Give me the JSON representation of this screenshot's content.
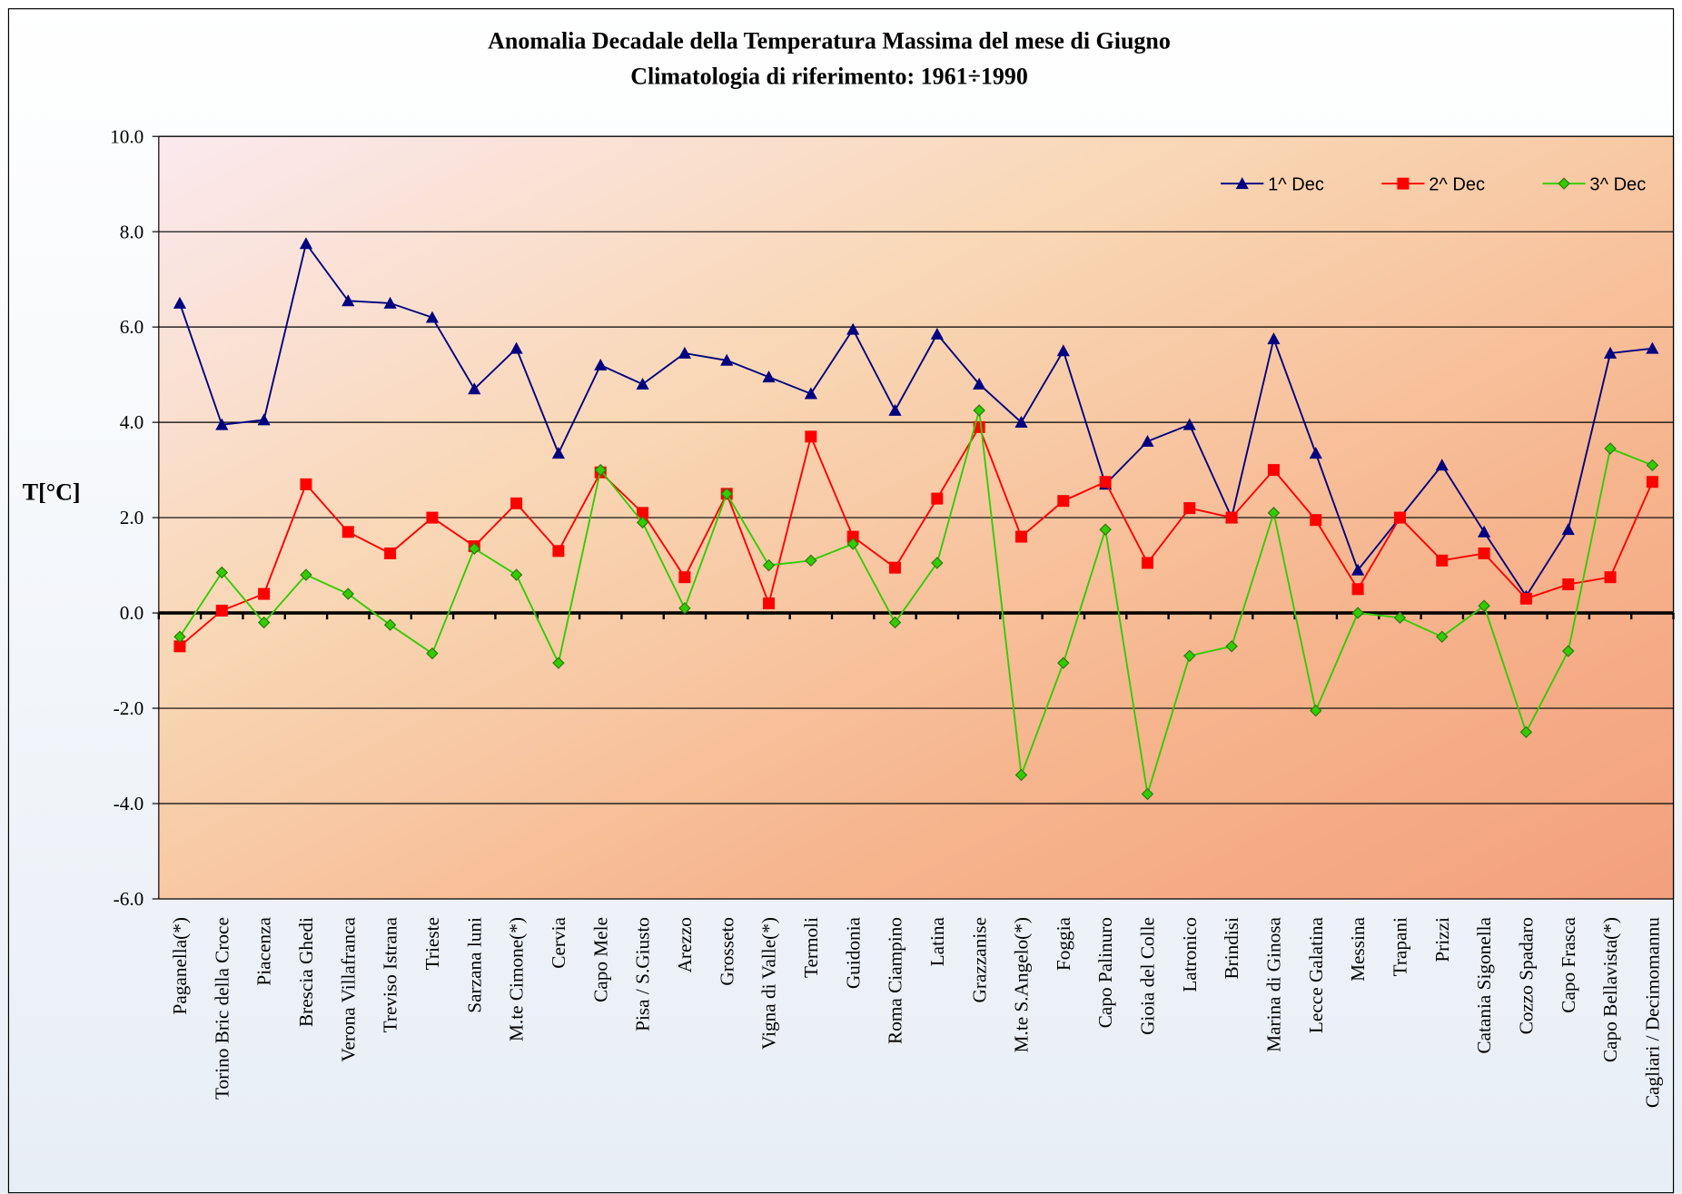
{
  "chart_data": {
    "type": "line",
    "title": "Anomalia Decadale della Temperatura Massima del mese di Giugno",
    "subtitle": "Climatologia di riferimento: 1961÷1990",
    "y_label": "T[°C]",
    "categories": [
      "Paganella(*)",
      "Torino Bric della Croce",
      "Piacenza",
      "Brescia Ghedi",
      "Verona Villafranca",
      "Treviso Istrana",
      "Trieste",
      "Sarzana luni",
      "M.te Cimone(*)",
      "Cervia",
      "Capo Mele",
      "Pisa / S.Giusto",
      "Arezzo",
      "Grosseto",
      "Vigna di Valle(*)",
      "Termoli",
      "Guidonia",
      "Roma Ciampino",
      "Latina",
      "Grazzanise",
      "M.te S.Angelo(*)",
      "Foggia",
      "Capo Palinuro",
      "Gioia del Colle",
      "Latronico",
      "Brindisi",
      "Marina di Ginosa",
      "Lecce Galatina",
      "Messina",
      "Trapani",
      "Prizzi",
      "Catania Sigonella",
      "Cozzo Spadaro",
      "Capo Frasca",
      "Capo Bellavista(*)",
      "Cagliari / Decimomannu"
    ],
    "series": [
      {
        "name": "1^ Dec",
        "color": "#000080",
        "marker": "triangle",
        "values": [
          6.5,
          3.95,
          4.05,
          7.75,
          6.55,
          6.5,
          6.2,
          4.7,
          5.55,
          3.35,
          5.2,
          4.8,
          5.45,
          5.3,
          4.95,
          4.6,
          5.95,
          4.25,
          5.85,
          4.8,
          4.0,
          5.5,
          2.7,
          3.6,
          3.95,
          2.0,
          5.75,
          3.35,
          0.9,
          2.0,
          3.1,
          1.7,
          0.35,
          1.75,
          5.45,
          5.55
        ]
      },
      {
        "name": "2^ Dec",
        "color": "#ff0000",
        "marker": "square",
        "values": [
          -0.7,
          0.05,
          0.4,
          2.7,
          1.7,
          1.25,
          2.0,
          1.4,
          2.3,
          1.3,
          2.95,
          2.1,
          0.75,
          2.5,
          0.2,
          3.7,
          1.6,
          0.95,
          2.4,
          3.9,
          1.6,
          2.35,
          2.75,
          1.05,
          2.2,
          2.0,
          3.0,
          1.95,
          0.5,
          2.0,
          1.1,
          1.25,
          0.3,
          0.6,
          0.75,
          2.75
        ]
      },
      {
        "name": "3^ Dec",
        "color": "#33cc00",
        "marker": "diamond",
        "values": [
          -0.5,
          0.85,
          -0.2,
          0.8,
          0.4,
          -0.25,
          -0.85,
          1.35,
          0.8,
          -1.05,
          3.0,
          1.9,
          0.1,
          2.5,
          1.0,
          1.1,
          1.45,
          -0.2,
          1.05,
          4.25,
          -3.4,
          -1.05,
          1.75,
          -3.8,
          -0.9,
          -0.7,
          2.1,
          -2.05,
          0.0,
          -0.1,
          -0.5,
          0.15,
          -2.5,
          -0.8,
          3.45,
          3.1
        ]
      }
    ],
    "ylim": [
      -6,
      10
    ],
    "yticks": [
      {
        "value": -6,
        "label": "-6.0"
      },
      {
        "value": -4,
        "label": "-4.0"
      },
      {
        "value": -2,
        "label": "-2.0"
      },
      {
        "value": 0,
        "label": "0.0"
      },
      {
        "value": 2,
        "label": "2.0"
      },
      {
        "value": 4,
        "label": "4.0"
      },
      {
        "value": 6,
        "label": "6.0"
      },
      {
        "value": 8,
        "label": "8.0"
      },
      {
        "value": 10,
        "label": "10.0"
      }
    ],
    "grid": true,
    "legend_position": "upper right"
  }
}
